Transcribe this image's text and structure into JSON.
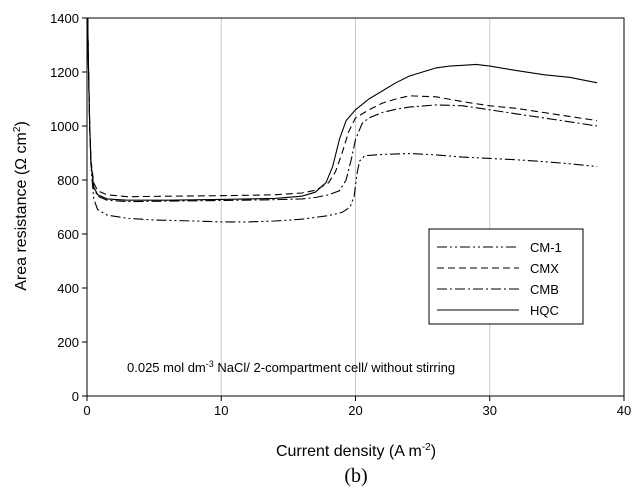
{
  "chart_data": {
    "type": "line",
    "title": "",
    "panel_label": "(b)",
    "xlabel": {
      "text": "Current density (A m",
      "sup": "-2",
      "suffix": ")"
    },
    "ylabel": {
      "text": "Area resistance (Ω cm",
      "sup": "2",
      "suffix": ")"
    },
    "xlim": [
      0,
      40
    ],
    "ylim": [
      0,
      1400
    ],
    "xticks": [
      0,
      10,
      20,
      30,
      40
    ],
    "yticks": [
      0,
      200,
      400,
      600,
      800,
      1000,
      1200,
      1400
    ],
    "grid": {
      "vertical": true,
      "horizontal": false
    },
    "legend_position": "right-middle",
    "annotation": {
      "part1": "0.025 mol dm",
      "sup": "-3",
      "part2": " NaCl/ 2-compartment cell/ without stirring"
    },
    "series": [
      {
        "name": "CM-1",
        "dash": "dash-dot-dot",
        "points": [
          [
            0.05,
            1400
          ],
          [
            0.1,
            1250
          ],
          [
            0.2,
            1000
          ],
          [
            0.3,
            850
          ],
          [
            0.5,
            730
          ],
          [
            0.8,
            690
          ],
          [
            1.5,
            670
          ],
          [
            3,
            658
          ],
          [
            5,
            652
          ],
          [
            8,
            648
          ],
          [
            10,
            645
          ],
          [
            12,
            645
          ],
          [
            14,
            648
          ],
          [
            16,
            655
          ],
          [
            18,
            668
          ],
          [
            19,
            680
          ],
          [
            19.6,
            700
          ],
          [
            19.9,
            740
          ],
          [
            20.1,
            820
          ],
          [
            20.3,
            870
          ],
          [
            20.7,
            890
          ],
          [
            22,
            895
          ],
          [
            24,
            898
          ],
          [
            26,
            893
          ],
          [
            28,
            885
          ],
          [
            30,
            880
          ],
          [
            32,
            875
          ],
          [
            34,
            868
          ],
          [
            36,
            860
          ],
          [
            38,
            850
          ]
        ]
      },
      {
        "name": "CMX",
        "dash": "dashed",
        "points": [
          [
            0.05,
            1400
          ],
          [
            0.1,
            1250
          ],
          [
            0.2,
            1000
          ],
          [
            0.3,
            870
          ],
          [
            0.5,
            790
          ],
          [
            0.8,
            760
          ],
          [
            1.5,
            745
          ],
          [
            3,
            738
          ],
          [
            6,
            740
          ],
          [
            10,
            742
          ],
          [
            14,
            745
          ],
          [
            16,
            752
          ],
          [
            17,
            762
          ],
          [
            18,
            790
          ],
          [
            18.5,
            830
          ],
          [
            19,
            900
          ],
          [
            19.5,
            980
          ],
          [
            20,
            1030
          ],
          [
            21,
            1060
          ],
          [
            22,
            1085
          ],
          [
            23,
            1100
          ],
          [
            24,
            1112
          ],
          [
            26,
            1108
          ],
          [
            28,
            1090
          ],
          [
            30,
            1075
          ],
          [
            32,
            1065
          ],
          [
            34,
            1050
          ],
          [
            36,
            1035
          ],
          [
            38,
            1020
          ]
        ]
      },
      {
        "name": "CMB",
        "dash": "dash-dot",
        "points": [
          [
            0.05,
            1400
          ],
          [
            0.1,
            1250
          ],
          [
            0.2,
            1000
          ],
          [
            0.3,
            860
          ],
          [
            0.5,
            770
          ],
          [
            0.8,
            740
          ],
          [
            1.5,
            725
          ],
          [
            3,
            720
          ],
          [
            6,
            722
          ],
          [
            10,
            724
          ],
          [
            14,
            727
          ],
          [
            16,
            730
          ],
          [
            17,
            735
          ],
          [
            18,
            745
          ],
          [
            18.8,
            760
          ],
          [
            19.3,
            800
          ],
          [
            19.7,
            880
          ],
          [
            20,
            950
          ],
          [
            20.5,
            1010
          ],
          [
            21,
            1030
          ],
          [
            22,
            1050
          ],
          [
            23,
            1062
          ],
          [
            24,
            1070
          ],
          [
            26,
            1078
          ],
          [
            28,
            1075
          ],
          [
            30,
            1060
          ],
          [
            32,
            1045
          ],
          [
            34,
            1030
          ],
          [
            36,
            1015
          ],
          [
            38,
            1000
          ]
        ]
      },
      {
        "name": "HQC",
        "dash": "solid",
        "points": [
          [
            0.05,
            1400
          ],
          [
            0.1,
            1250
          ],
          [
            0.2,
            1000
          ],
          [
            0.3,
            860
          ],
          [
            0.5,
            775
          ],
          [
            0.8,
            745
          ],
          [
            1.5,
            730
          ],
          [
            3,
            725
          ],
          [
            6,
            725
          ],
          [
            10,
            728
          ],
          [
            14,
            732
          ],
          [
            16,
            740
          ],
          [
            17,
            755
          ],
          [
            17.8,
            790
          ],
          [
            18.3,
            850
          ],
          [
            18.8,
            950
          ],
          [
            19.3,
            1020
          ],
          [
            20,
            1060
          ],
          [
            21,
            1100
          ],
          [
            22,
            1130
          ],
          [
            23,
            1160
          ],
          [
            24,
            1185
          ],
          [
            25,
            1200
          ],
          [
            26,
            1215
          ],
          [
            27,
            1222
          ],
          [
            28,
            1225
          ],
          [
            29,
            1228
          ],
          [
            30,
            1222
          ],
          [
            32,
            1205
          ],
          [
            34,
            1190
          ],
          [
            36,
            1180
          ],
          [
            38,
            1160
          ]
        ]
      }
    ]
  }
}
